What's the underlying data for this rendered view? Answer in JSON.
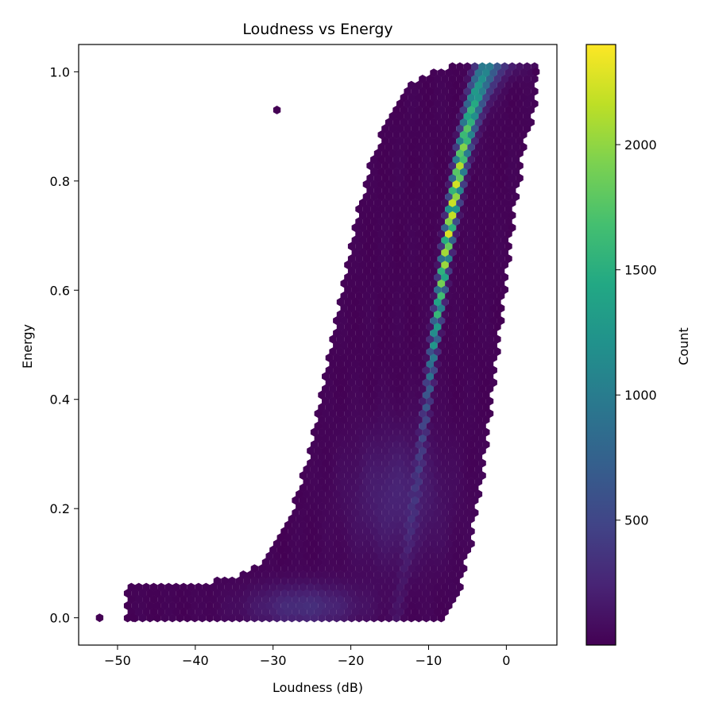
{
  "chart_data": {
    "type": "heatmap",
    "subtype": "hexbin",
    "title": "Loudness vs Energy",
    "xlabel": "Loudness (dB)",
    "ylabel": "Energy",
    "xlim": [
      -55,
      6.5
    ],
    "ylim": [
      -0.05,
      1.05
    ],
    "xticks": [
      -50,
      -40,
      -30,
      -20,
      -10,
      0
    ],
    "xtick_labels": [
      "−50",
      "−40",
      "−30",
      "−20",
      "−10",
      "0"
    ],
    "yticks": [
      0.0,
      0.2,
      0.4,
      0.6,
      0.8,
      1.0
    ],
    "ytick_labels": [
      "0.0",
      "0.2",
      "0.4",
      "0.6",
      "0.8",
      "1.0"
    ],
    "colormap": "viridis",
    "colorbar": {
      "label": "Count",
      "range": [
        1,
        2400
      ],
      "ticks": [
        500,
        1000,
        1500,
        2000
      ],
      "tick_labels": [
        "500",
        "1000",
        "1500",
        "2000"
      ]
    },
    "grid": false,
    "distribution": {
      "description_points": [
        {
          "x": -52.3,
          "y": 0.0,
          "count": 1
        },
        {
          "x": -48,
          "y": 0.0,
          "count": 1
        },
        {
          "x": -40,
          "y": 0.01,
          "count": 20
        },
        {
          "x": -30,
          "y": 0.05,
          "count": 60
        },
        {
          "x": -25,
          "y": 0.02,
          "count": 250
        },
        {
          "x": -20,
          "y": 0.1,
          "count": 350
        },
        {
          "x": -15,
          "y": 0.2,
          "count": 500
        },
        {
          "x": -10,
          "y": 0.35,
          "count": 750
        },
        {
          "x": -8,
          "y": 0.5,
          "count": 1300
        },
        {
          "x": -6,
          "y": 0.65,
          "count": 1900
        },
        {
          "x": -5.5,
          "y": 0.73,
          "count": 2400
        },
        {
          "x": -4.5,
          "y": 0.87,
          "count": 2300
        },
        {
          "x": -4,
          "y": 0.95,
          "count": 1700
        },
        {
          "x": 3.8,
          "y": 1.0,
          "count": 1
        },
        {
          "x": -29.5,
          "y": 0.93,
          "count": 1
        }
      ]
    }
  }
}
